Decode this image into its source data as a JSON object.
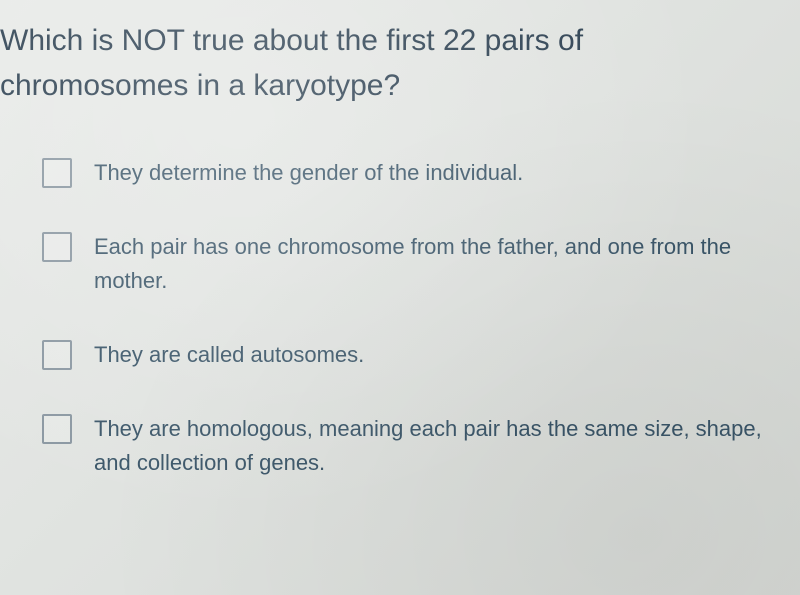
{
  "question": {
    "text_line1": "Which is NOT true about the first 22 pairs of",
    "text_line2": "chromosomes in a karyotype?",
    "fontsize": 30,
    "color": "#2b3f50"
  },
  "options": [
    {
      "text": "They determine the gender of the individual.",
      "checked": false
    },
    {
      "text": "Each pair has one chromosome from the father, and one from the mother.",
      "checked": false
    },
    {
      "text": "They are called autosomes.",
      "checked": false
    },
    {
      "text": "They are homologous, meaning each pair has the same size, shape, and collection of genes.",
      "checked": false
    }
  ],
  "styling": {
    "background_gradient": [
      "#e8eae8",
      "#dfe2df",
      "#d5d8d4"
    ],
    "option_fontsize": 22,
    "option_color": "#3a5568",
    "checkbox_border": "#8a97a1",
    "checkbox_size": 30
  }
}
